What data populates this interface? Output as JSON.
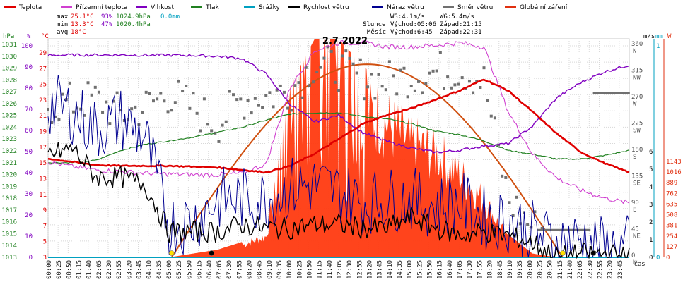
{
  "chart_data": {
    "type": "line",
    "title": "2.7.2022",
    "legend": [
      {
        "label": "Teplota",
        "color": "#e00000"
      },
      {
        "label": "Přízemní teplota",
        "color": "#d040d0"
      },
      {
        "label": "Vlhkost",
        "color": "#8000c0"
      },
      {
        "label": "Tlak",
        "color": "#208020"
      },
      {
        "label": "Srážky",
        "color": "#00a0c0"
      },
      {
        "label": "Rychlost větru",
        "color": "#000000"
      },
      {
        "label": "Náraz větru",
        "color": "#000090"
      },
      {
        "label": "Směr větru",
        "color": "#707070"
      },
      {
        "label": "Globální záření",
        "color": "#e03010"
      }
    ],
    "stats": {
      "max": {
        "label": "max",
        "temp": "25.1°C",
        "hum": "93%",
        "press": "1024.9hPa",
        "rain": "0.0mm"
      },
      "min": {
        "label": "min",
        "temp": "13.3°C",
        "hum": "47%",
        "press": "1020.4hPa"
      },
      "avg": {
        "label": "avg",
        "temp": "18°C"
      }
    },
    "info": {
      "ws": "WS:4.1m/s",
      "wg": "WG:5.4m/s",
      "sun_label": "Slunce",
      "sun_rise": "Východ:05:06",
      "sun_set": "Západ:21:15",
      "moon_label": "Měsíc",
      "moon_rise": "Východ:6:45",
      "moon_set": "Západ:22:31"
    },
    "axes": {
      "hpa": {
        "unit": "hPa",
        "ticks": [
          "1031",
          "1030",
          "1029",
          "1028",
          "1027",
          "1026",
          "1025",
          "1024",
          "1023",
          "1022",
          "1021",
          "1020",
          "1019",
          "1018",
          "1017",
          "1016",
          "1015",
          "1014",
          "1013"
        ],
        "range": [
          1013,
          1031
        ]
      },
      "pct": {
        "unit": "%",
        "ticks": [
          "100",
          "90",
          "80",
          "70",
          "60",
          "50",
          "40",
          "30",
          "20",
          "10",
          "0"
        ],
        "range": [
          0,
          100
        ]
      },
      "temp": {
        "unit": "°C",
        "ticks": [
          "29",
          "27",
          "25",
          "23",
          "21",
          "19",
          "17",
          "15",
          "13",
          "11",
          "9",
          "7",
          "5",
          "3"
        ],
        "range": [
          3,
          30
        ]
      },
      "dir": {
        "ticks": [
          "360",
          "315",
          "270",
          "225",
          "180",
          "135",
          "90",
          "45",
          "0"
        ],
        "names": [
          "N",
          "NW",
          "W",
          "SW",
          "S",
          "SE",
          "E",
          "NE",
          "N"
        ],
        "range": [
          0,
          360
        ]
      },
      "ms": {
        "unit": "m/s",
        "ticks": [
          "6",
          "5",
          "4",
          "3",
          "2",
          "1",
          "0"
        ],
        "range": [
          0,
          6
        ]
      },
      "mm": {
        "unit": "mm",
        "ticks": [
          "1",
          "0"
        ],
        "range": [
          0,
          1
        ]
      },
      "w": {
        "unit": "W",
        "ticks": [
          "1143",
          "1016",
          "889",
          "762",
          "635",
          "508",
          "381",
          "254",
          "127",
          "0"
        ],
        "range": [
          0,
          1143
        ]
      },
      "x_label": "čas",
      "x_ticks": [
        "00:00",
        "00:25",
        "00:50",
        "01:15",
        "01:40",
        "02:05",
        "02:30",
        "02:55",
        "03:20",
        "03:45",
        "04:10",
        "04:35",
        "05:00",
        "05:25",
        "05:50",
        "06:15",
        "06:40",
        "07:05",
        "07:30",
        "07:55",
        "08:20",
        "08:45",
        "09:10",
        "09:35",
        "10:00",
        "10:25",
        "10:50",
        "11:15",
        "11:40",
        "12:05",
        "12:30",
        "12:55",
        "13:20",
        "13:45",
        "14:10",
        "14:35",
        "15:00",
        "15:25",
        "15:50",
        "16:15",
        "16:40",
        "17:05",
        "17:30",
        "17:55",
        "18:20",
        "18:45",
        "19:10",
        "19:35",
        "20:00",
        "20:25",
        "20:50",
        "21:15",
        "21:40",
        "22:05",
        "22:30",
        "22:55",
        "23:20",
        "23:45"
      ]
    },
    "series": {
      "temperature_c": {
        "t": [
          0,
          1,
          2,
          3,
          4,
          5,
          6,
          7,
          8,
          9,
          10,
          11,
          12,
          13,
          14,
          15,
          16,
          17,
          18,
          19,
          20,
          21,
          22,
          23,
          24
        ],
        "v": [
          15.2,
          14.8,
          14.4,
          14.3,
          14.3,
          14.3,
          14.2,
          14.1,
          13.8,
          13.5,
          14.3,
          15.8,
          17.6,
          19.5,
          20.6,
          21.4,
          22.5,
          23.6,
          25.0,
          23.6,
          21.0,
          18.3,
          16.0,
          14.6,
          13.5
        ]
      },
      "ground_temp_c": {
        "t": [
          0,
          1,
          2,
          3,
          4,
          5,
          6,
          7,
          8,
          9,
          10,
          11,
          12,
          13,
          14,
          15,
          16,
          17,
          18,
          19,
          20,
          21,
          22,
          23,
          24
        ],
        "v": [
          14.8,
          14.2,
          13.8,
          13.6,
          13.4,
          13.3,
          13.2,
          13.2,
          13.4,
          14.5,
          24.0,
          28.5,
          29.5,
          29.5,
          29.0,
          29.0,
          29.2,
          29.5,
          29.0,
          21.0,
          15.8,
          12.8,
          11.3,
          10.3,
          9.7
        ]
      },
      "humidity_pct": {
        "t": [
          0,
          1,
          2,
          3,
          4,
          5,
          6,
          7,
          8,
          9,
          10,
          11,
          12,
          13,
          14,
          15,
          16,
          17,
          18,
          19,
          20,
          21,
          22,
          23,
          24
        ],
        "v": [
          92.5,
          92.6,
          92.6,
          92.6,
          92.5,
          92.5,
          92.4,
          92.0,
          91.0,
          84.0,
          70.0,
          62.0,
          65.0,
          57.0,
          53.0,
          50.0,
          48.0,
          49.0,
          51.0,
          52.0,
          60.0,
          73.0,
          80.0,
          85.0,
          88.0
        ]
      },
      "pressure_hpa": {
        "t": [
          0,
          1,
          2,
          3,
          4,
          5,
          6,
          7,
          8,
          9,
          10,
          11,
          12,
          13,
          14,
          15,
          16,
          17,
          18,
          19,
          20,
          21,
          22,
          23,
          24
        ],
        "v": [
          1020.8,
          1020.8,
          1021.0,
          1021.8,
          1022.3,
          1022.6,
          1022.9,
          1023.3,
          1023.7,
          1024.3,
          1024.8,
          1024.9,
          1024.9,
          1024.6,
          1024.4,
          1024.0,
          1023.4,
          1023.1,
          1022.6,
          1021.8,
          1021.5,
          1021.1,
          1021.1,
          1021.4,
          1021.8
        ]
      },
      "wind_speed_ms": {
        "t": [
          0,
          1,
          2,
          3,
          4,
          5,
          6,
          7,
          8,
          9,
          10,
          11,
          12,
          13,
          14,
          15,
          16,
          17,
          18,
          19,
          20,
          21,
          22,
          23,
          24
        ],
        "v": [
          2.8,
          3.0,
          2.2,
          2.2,
          2.0,
          0.7,
          0.7,
          0.7,
          0.9,
          0.8,
          0.8,
          0.9,
          0.9,
          0.8,
          0.8,
          1.1,
          0.8,
          0.6,
          0.7,
          0.6,
          0.4,
          0.0,
          0.1,
          0.1,
          0.0
        ]
      },
      "wind_gust_ms": {
        "t": [
          0,
          1,
          2,
          3,
          4,
          5,
          6,
          7,
          8,
          9,
          10,
          11,
          12,
          13,
          14,
          15,
          16,
          17,
          18,
          19,
          20,
          21,
          22,
          23,
          24
        ],
        "v": [
          4.2,
          4.0,
          3.5,
          3.8,
          3.3,
          0.9,
          1.0,
          1.6,
          1.6,
          1.6,
          1.9,
          2.0,
          1.8,
          1.5,
          1.6,
          1.6,
          1.4,
          1.5,
          1.1,
          1.0,
          0.7,
          0.4,
          0.5,
          0.2,
          0.3
        ]
      },
      "wind_dir_deg": {
        "t": [
          0,
          1,
          2,
          3,
          4,
          5,
          6,
          7,
          8,
          9,
          10,
          11,
          12,
          13,
          14,
          15,
          16,
          17,
          18,
          19,
          20,
          21,
          22,
          23,
          24
        ],
        "v": [
          250,
          255,
          260,
          235,
          248,
          270,
          245,
          220,
          260,
          265,
          275,
          320,
          310,
          295,
          290,
          300,
          305,
          310,
          290,
          95,
          50,
          45,
          45,
          270,
          270
        ]
      },
      "solar_wm2": {
        "t": [
          0,
          5,
          6,
          7,
          8,
          9,
          10,
          11,
          12,
          13,
          14,
          15,
          16,
          17,
          18,
          19,
          20,
          21,
          24
        ],
        "v": [
          0,
          0,
          20,
          40,
          80,
          140,
          900,
          1140,
          1143,
          1000,
          900,
          750,
          700,
          550,
          380,
          120,
          20,
          0,
          0
        ]
      },
      "rain_mm": {
        "t": [
          0,
          24
        ],
        "v": [
          0,
          0
        ]
      }
    },
    "markers": [
      {
        "name": "sunrise",
        "time": "05:06",
        "color": "#ffe000"
      },
      {
        "name": "moonrise",
        "time": "06:45",
        "color": "#000000"
      },
      {
        "name": "sunset",
        "time": "21:15",
        "color": "#ffe000"
      },
      {
        "name": "moonset",
        "time": "22:31",
        "color": "#000000"
      }
    ]
  }
}
